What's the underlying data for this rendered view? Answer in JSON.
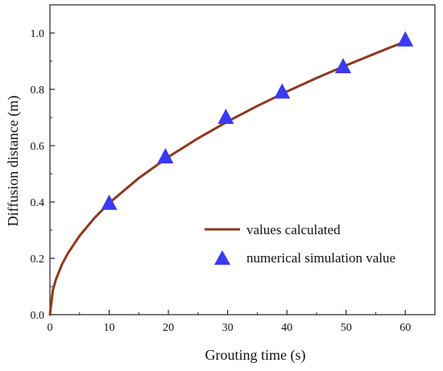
{
  "chart_data": {
    "type": "line",
    "title": "",
    "xlabel": "Grouting time (s)",
    "ylabel": "Diffusion distance (m)",
    "xlim": [
      0,
      65
    ],
    "ylim": [
      0,
      1.1
    ],
    "xticks": [
      0,
      10,
      20,
      30,
      40,
      50,
      60
    ],
    "yticks": [
      0.0,
      0.2,
      0.4,
      0.6,
      0.8,
      1.0
    ],
    "xtick_labels": [
      "0",
      "10",
      "20",
      "30",
      "40",
      "50",
      "60"
    ],
    "ytick_labels": [
      "0.0",
      "0.2",
      "0.4",
      "0.6",
      "0.8",
      "1.0"
    ],
    "grid": false,
    "legend_position": "center-right",
    "series": [
      {
        "name": "values calculated",
        "kind": "line",
        "color": "#8b3a1e",
        "x": [
          0,
          0.5,
          1,
          2,
          3,
          5,
          7.5,
          10,
          15,
          20,
          25,
          30,
          35,
          40,
          45,
          50,
          55,
          60
        ],
        "y": [
          0,
          0.088,
          0.125,
          0.177,
          0.217,
          0.28,
          0.343,
          0.396,
          0.485,
          0.56,
          0.626,
          0.686,
          0.741,
          0.792,
          0.84,
          0.885,
          0.928,
          0.97
        ]
      },
      {
        "name": "numerical simulation value",
        "kind": "scatter",
        "marker": "triangle",
        "color": "#3a3af0",
        "x": [
          10,
          19.5,
          29.7,
          39.2,
          49.5,
          60
        ],
        "y": [
          0.395,
          0.56,
          0.7,
          0.79,
          0.88,
          0.975
        ]
      }
    ]
  }
}
